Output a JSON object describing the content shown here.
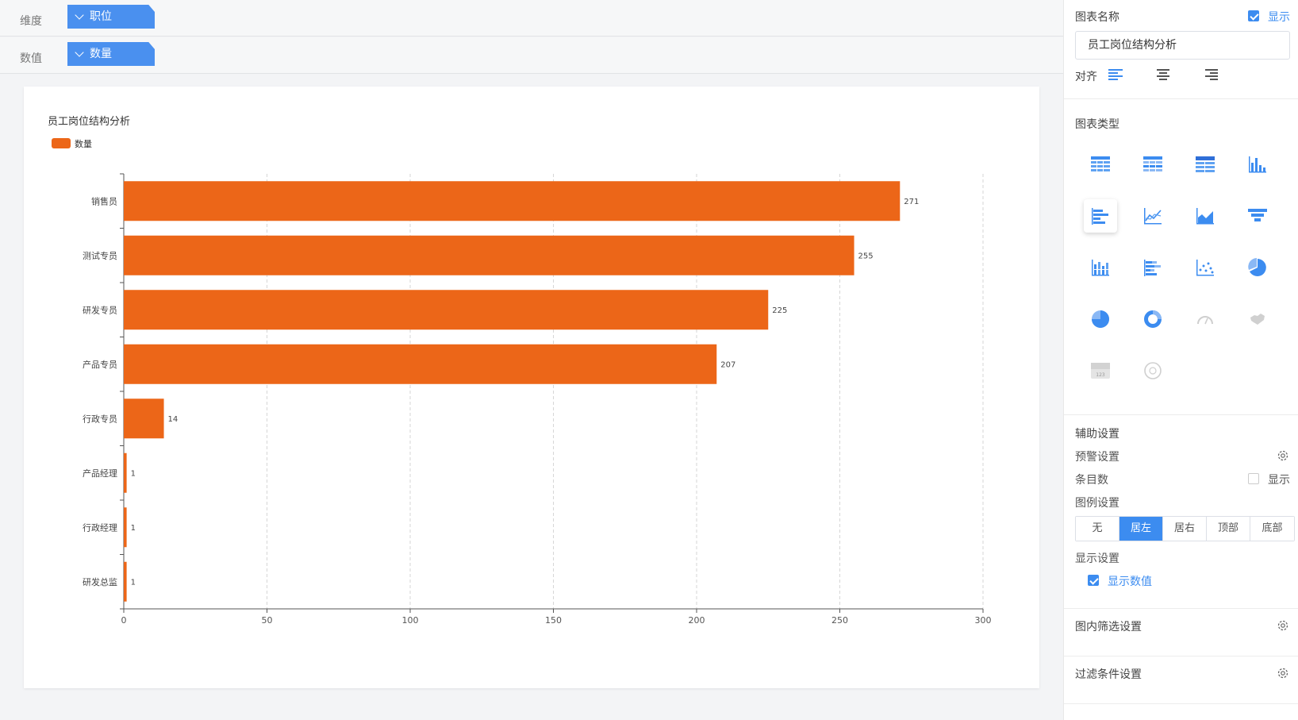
{
  "fields": {
    "dimension": {
      "label": "维度",
      "value": "职位"
    },
    "measure": {
      "label": "数值",
      "value": "数量"
    }
  },
  "chart_data": {
    "type": "bar",
    "orientation": "horizontal",
    "title": "员工岗位结构分析",
    "legend": [
      "数量"
    ],
    "legend_position": "top-left",
    "categories": [
      "销售员",
      "测试专员",
      "研发专员",
      "产品专员",
      "行政专员",
      "产品经理",
      "行政经理",
      "研发总监"
    ],
    "series": [
      {
        "name": "数量",
        "values": [
          271,
          255,
          225,
          207,
          14,
          1,
          1,
          1
        ]
      }
    ],
    "xlim": [
      0,
      300
    ],
    "xticks": [
      0,
      50,
      100,
      150,
      200,
      250,
      300
    ],
    "grid": "vertical dashed",
    "show_values": true,
    "color": "#ec6618"
  },
  "panel": {
    "chart_name_label": "图表名称",
    "show_label": "显示",
    "chart_name_value": "员工岗位结构分析",
    "align_label": "对齐",
    "chart_type_label": "图表类型",
    "aux_label": "辅助设置",
    "warning_label": "预警设置",
    "count_label": "条目数",
    "count_show_label": "显示",
    "legend_label": "图例设置",
    "legend_options": [
      "无",
      "居左",
      "居右",
      "顶部",
      "底部"
    ],
    "legend_selected": "居左",
    "display_label": "显示设置",
    "display_values_label": "显示数值",
    "inner_filter_label": "图内筛选设置",
    "filter_label": "过滤条件设置"
  },
  "colors": {
    "accent": "#3c8cf0",
    "pill": "#4a90ef",
    "bar": "#ec6618"
  }
}
